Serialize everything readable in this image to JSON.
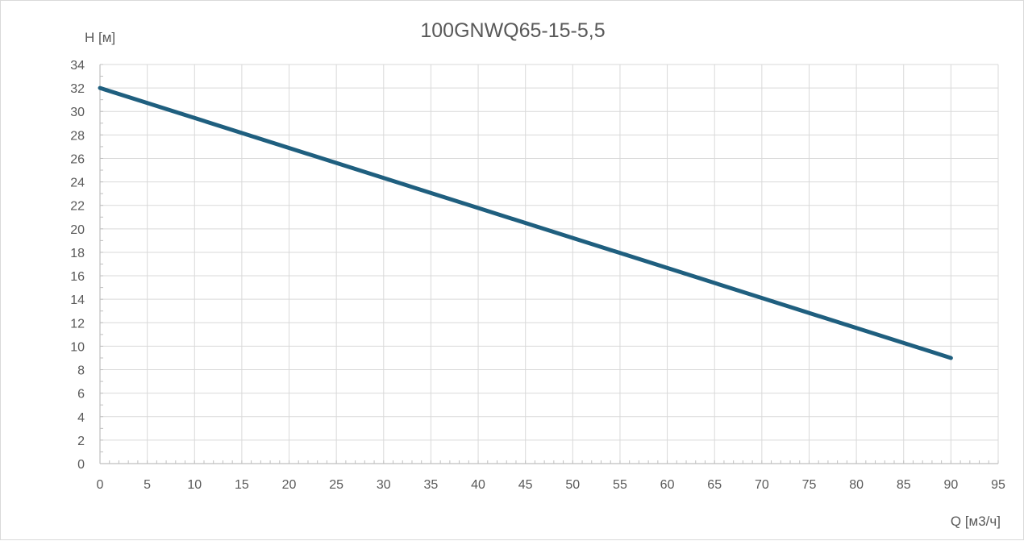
{
  "chart_data": {
    "type": "line",
    "title": "100GNWQ65-15-5,5",
    "xlabel": "Q [м3/ч]",
    "ylabel": "H [м]",
    "xlim": [
      0,
      95
    ],
    "ylim": [
      0,
      34
    ],
    "x_ticks": [
      0,
      5,
      10,
      15,
      20,
      25,
      30,
      35,
      40,
      45,
      50,
      55,
      60,
      65,
      70,
      75,
      80,
      85,
      90,
      95
    ],
    "y_ticks": [
      0,
      2,
      4,
      6,
      8,
      10,
      12,
      14,
      16,
      18,
      20,
      22,
      24,
      26,
      28,
      30,
      32,
      34
    ],
    "grid": true,
    "series": [
      {
        "x": [
          0,
          90
        ],
        "y": [
          32,
          9
        ],
        "color": "#1f5f7f"
      }
    ]
  }
}
